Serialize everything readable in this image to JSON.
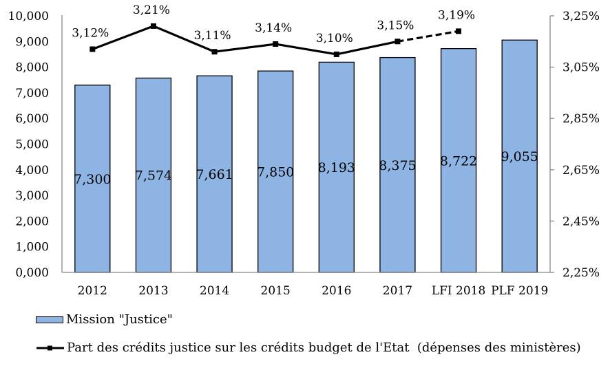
{
  "chart_data": {
    "type": "bar",
    "title": "",
    "xlabel": "",
    "ylabel": "",
    "categories": [
      "2012",
      "2013",
      "2014",
      "2015",
      "2016",
      "2017",
      "LFI 2018",
      "PLF 2019"
    ],
    "series": [
      {
        "name": "Mission \"Justice\"",
        "type": "bar",
        "axis": "left",
        "color": "#8EB4E3",
        "values": [
          7300,
          7574,
          7661,
          7850,
          8193,
          8375,
          8722,
          9055
        ],
        "labels": [
          "7,300",
          "7,574",
          "7,661",
          "7,850",
          "8,193",
          "8,375",
          "8,722",
          "9,055"
        ]
      },
      {
        "name": "Part des crédits justice sur les crédits budget de l'Etat  (dépenses des ministères)",
        "type": "line",
        "axis": "right",
        "color": "#000000",
        "values": [
          3.12,
          3.21,
          3.11,
          3.14,
          3.1,
          3.15,
          3.19,
          null
        ],
        "labels": [
          "3,12%",
          "3,21%",
          "3,11%",
          "3,14%",
          "3,10%",
          "3,15%",
          "3,19%",
          ""
        ],
        "dashed_from_index": 5
      }
    ],
    "ylim": [
      0,
      10000
    ],
    "yticks": [
      "0,000",
      "1,000",
      "2,000",
      "3,000",
      "4,000",
      "5,000",
      "6,000",
      "7,000",
      "8,000",
      "9,000",
      "10,000"
    ],
    "y2lim": [
      2.25,
      3.25
    ],
    "y2ticks": [
      "2,25%",
      "2,45%",
      "2,65%",
      "2,85%",
      "3,05%",
      "3,25%"
    ],
    "grid": false,
    "legend_position": "bottom-left"
  },
  "legend": {
    "bar_label": "Mission \"Justice\"",
    "line_label": "Part des crédits justice sur les crédits budget de l'Etat  (dépenses des ministères)"
  }
}
